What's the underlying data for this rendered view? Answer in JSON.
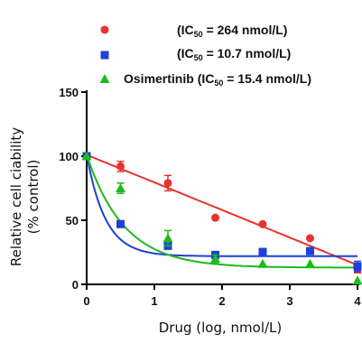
{
  "chart_data": {
    "type": "scatter",
    "xlabel": "Drug (log, nmol/L)",
    "ylabel_line1": "Relative cell ciability",
    "ylabel_line2": "(% control)",
    "xlim": [
      0,
      4
    ],
    "ylim": [
      0,
      150
    ],
    "x_ticks": [
      "0",
      "1",
      "2",
      "3",
      "4"
    ],
    "y_ticks": [
      "0",
      "50",
      "100",
      "150"
    ],
    "grid": false,
    "legend_position": "top",
    "series": [
      {
        "label_prefix": "",
        "label_paren_open": "(IC",
        "label_sub": "50",
        "label_suffix": " = 264 nmol/L)",
        "color": "#e8322f",
        "marker": "circle",
        "x": [
          0,
          0.5,
          1.2,
          1.9,
          2.6,
          3.3,
          4.0
        ],
        "y": [
          100,
          92,
          79,
          52,
          47,
          36,
          12
        ],
        "err": [
          0,
          4,
          6,
          0,
          0,
          0,
          3
        ],
        "fit": {
          "type": "linear",
          "start": 101,
          "slope": -21.5
        }
      },
      {
        "label_prefix": "",
        "label_paren_open": "(IC",
        "label_sub": "50",
        "label_suffix": " = 10.7 nmol/L)",
        "color": "#1f3fd6",
        "marker": "square",
        "x": [
          0,
          0.5,
          1.2,
          1.9,
          2.6,
          3.3,
          4.0
        ],
        "y": [
          100,
          47,
          30,
          23,
          25,
          26,
          14
        ],
        "err": [
          0,
          0,
          0,
          0,
          3,
          0,
          4
        ],
        "fit": {
          "type": "exp",
          "bottom": 22,
          "top": 101,
          "k": 3.6
        }
      },
      {
        "label_prefix": "Osimertinib ",
        "label_paren_open": "(IC",
        "label_sub": "50",
        "label_suffix": " = 15.4 nmol/L)",
        "color": "#1dba1d",
        "marker": "triangle",
        "x": [
          0,
          0.5,
          1.2,
          1.9,
          2.6,
          3.3,
          4.0
        ],
        "y": [
          100,
          75,
          36,
          20,
          16,
          16,
          3
        ],
        "err": [
          0,
          4,
          6,
          3,
          0,
          0,
          0
        ],
        "fit": {
          "type": "exp",
          "bottom": 13,
          "top": 101,
          "k": 1.8
        }
      }
    ]
  }
}
